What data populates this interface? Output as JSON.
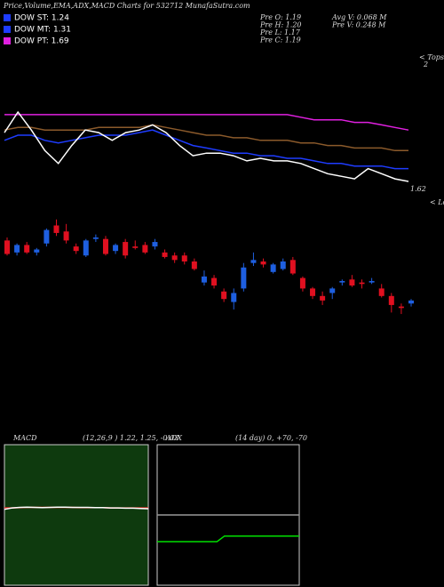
{
  "header": {
    "title": "Price,Volume,EMA,ADX,MACD Charts for 532712 MunafaSutra.com",
    "legend": [
      {
        "label": "DOW ST: 1.24",
        "color": "#1e3cff"
      },
      {
        "label": "DOW MT: 1.31",
        "color": "#1e3cff"
      },
      {
        "label": "DOW PT: 1.69",
        "color": "#e020e0"
      }
    ],
    "info": [
      "Pre O: 1.19",
      "Pre H: 1.20",
      "Pre L: 1.17",
      "Pre C: 1.19",
      "Avg V: 0.068 M",
      "Pre V: 0.248 M"
    ]
  },
  "chart_data": [
    {
      "type": "line",
      "ylim": [
        1.55,
        2.0
      ],
      "annotations": [
        "< Tops",
        "2",
        "1.62",
        "< Lows"
      ],
      "series": [
        {
          "color": "#8b5a2b",
          "values": [
            1.84,
            1.85,
            1.85,
            1.84,
            1.84,
            1.84,
            1.84,
            1.85,
            1.85,
            1.85,
            1.85,
            1.86,
            1.85,
            1.84,
            1.83,
            1.82,
            1.82,
            1.81,
            1.81,
            1.8,
            1.8,
            1.8,
            1.79,
            1.79,
            1.78,
            1.78,
            1.77,
            1.77,
            1.77,
            1.76,
            1.76
          ]
        },
        {
          "color": "#e020e0",
          "values": [
            1.9,
            1.9,
            1.9,
            1.9,
            1.9,
            1.9,
            1.9,
            1.9,
            1.9,
            1.9,
            1.9,
            1.9,
            1.9,
            1.9,
            1.9,
            1.9,
            1.9,
            1.9,
            1.9,
            1.9,
            1.9,
            1.9,
            1.89,
            1.88,
            1.88,
            1.88,
            1.87,
            1.87,
            1.86,
            1.85,
            1.84
          ]
        },
        {
          "color": "#1e3cff",
          "values": [
            1.8,
            1.82,
            1.82,
            1.8,
            1.79,
            1.8,
            1.81,
            1.82,
            1.82,
            1.82,
            1.83,
            1.84,
            1.82,
            1.8,
            1.78,
            1.77,
            1.76,
            1.75,
            1.75,
            1.74,
            1.74,
            1.73,
            1.73,
            1.72,
            1.71,
            1.71,
            1.7,
            1.7,
            1.7,
            1.69,
            1.69
          ]
        },
        {
          "color": "#ffffff",
          "values": [
            1.83,
            1.91,
            1.84,
            1.76,
            1.71,
            1.78,
            1.84,
            1.83,
            1.8,
            1.83,
            1.84,
            1.86,
            1.83,
            1.78,
            1.74,
            1.75,
            1.75,
            1.74,
            1.72,
            1.73,
            1.72,
            1.72,
            1.71,
            1.69,
            1.67,
            1.66,
            1.65,
            1.69,
            1.67,
            1.65,
            1.64
          ]
        }
      ]
    },
    {
      "type": "candlestick",
      "ylim": [
        1.1,
        1.9
      ],
      "up_color": "#1e5fe0",
      "down_color": "#e01020",
      "open": [
        1.72,
        1.64,
        1.69,
        1.64,
        1.7,
        1.82,
        1.78,
        1.68,
        1.62,
        1.73,
        1.73,
        1.65,
        1.71,
        1.68,
        1.69,
        1.68,
        1.64,
        1.62,
        1.62,
        1.58,
        1.44,
        1.47,
        1.38,
        1.31,
        1.4,
        1.57,
        1.58,
        1.51,
        1.53,
        1.59,
        1.47,
        1.4,
        1.35,
        1.37,
        1.44,
        1.46,
        1.44,
        1.44,
        1.4,
        1.35,
        1.28,
        1.3
      ],
      "high": [
        1.74,
        1.7,
        1.71,
        1.67,
        1.8,
        1.86,
        1.83,
        1.7,
        1.73,
        1.76,
        1.75,
        1.7,
        1.73,
        1.72,
        1.71,
        1.73,
        1.66,
        1.64,
        1.64,
        1.6,
        1.52,
        1.49,
        1.4,
        1.4,
        1.57,
        1.64,
        1.6,
        1.57,
        1.6,
        1.61,
        1.48,
        1.41,
        1.38,
        1.41,
        1.46,
        1.49,
        1.46,
        1.47,
        1.43,
        1.37,
        1.3,
        1.33
      ],
      "low": [
        1.62,
        1.62,
        1.63,
        1.62,
        1.68,
        1.75,
        1.7,
        1.63,
        1.61,
        1.71,
        1.62,
        1.63,
        1.6,
        1.66,
        1.63,
        1.66,
        1.6,
        1.57,
        1.56,
        1.52,
        1.42,
        1.4,
        1.31,
        1.26,
        1.38,
        1.55,
        1.54,
        1.5,
        1.52,
        1.49,
        1.38,
        1.33,
        1.29,
        1.33,
        1.42,
        1.41,
        1.4,
        1.43,
        1.34,
        1.24,
        1.23,
        1.28
      ],
      "close": [
        1.63,
        1.69,
        1.64,
        1.66,
        1.79,
        1.77,
        1.72,
        1.65,
        1.72,
        1.74,
        1.63,
        1.69,
        1.62,
        1.67,
        1.64,
        1.71,
        1.61,
        1.59,
        1.58,
        1.53,
        1.48,
        1.42,
        1.33,
        1.37,
        1.54,
        1.59,
        1.56,
        1.56,
        1.58,
        1.5,
        1.4,
        1.35,
        1.32,
        1.4,
        1.45,
        1.42,
        1.43,
        1.45,
        1.35,
        1.29,
        1.27,
        1.32
      ]
    },
    {
      "type": "line",
      "title": "MACD",
      "subtitle": "(12,26,9 ) 1.22, 1.25, -0.03",
      "ylim": [
        -1.5,
        3.5
      ],
      "background": "#0e3a0e",
      "series": [
        {
          "color": "#ff3030",
          "values": [
            1.25,
            1.25,
            1.26,
            1.27,
            1.27,
            1.27,
            1.27,
            1.27,
            1.27,
            1.27,
            1.26,
            1.26,
            1.26,
            1.26,
            1.25,
            1.25,
            1.25,
            1.25,
            1.25,
            1.25
          ]
        },
        {
          "color": "#ffffff",
          "values": [
            1.2,
            1.25,
            1.27,
            1.28,
            1.27,
            1.26,
            1.27,
            1.28,
            1.28,
            1.27,
            1.27,
            1.27,
            1.26,
            1.26,
            1.25,
            1.25,
            1.24,
            1.24,
            1.23,
            1.22
          ]
        }
      ]
    },
    {
      "type": "line",
      "title": "ADX",
      "subtitle": "(14 day) 0, +70, -70",
      "ylim": [
        0,
        100
      ],
      "background": "#000000",
      "series": [
        {
          "color": "#999999",
          "values": [
            50,
            50,
            50,
            50,
            50,
            50,
            50,
            50,
            50,
            50,
            50,
            50,
            50,
            50,
            50,
            50,
            50,
            50,
            50,
            50
          ]
        },
        {
          "color": "#00e000",
          "values": [
            31,
            31,
            31,
            31,
            31,
            31,
            31,
            31,
            31,
            35,
            35,
            35,
            35,
            35,
            35,
            35,
            35,
            35,
            35,
            35
          ]
        }
      ]
    }
  ]
}
